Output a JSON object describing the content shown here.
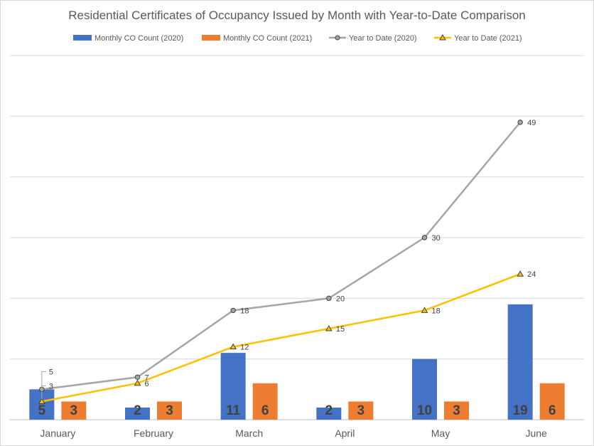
{
  "chart_data": {
    "type": "bar",
    "title": "Residential Certificates of Occupancy Issued by Month with Year-to-Date Comparison",
    "categories": [
      "January",
      "February",
      "March",
      "April",
      "May",
      "June"
    ],
    "series": [
      {
        "name": "Monthly CO Count (2020)",
        "kind": "bar",
        "color": "#4472C4",
        "values": [
          5,
          2,
          11,
          2,
          10,
          19
        ]
      },
      {
        "name": "Monthly CO Count (2021)",
        "kind": "bar",
        "color": "#ED7D31",
        "values": [
          3,
          3,
          6,
          3,
          3,
          6
        ]
      },
      {
        "name": "Year to Date (2020)",
        "kind": "line",
        "marker": "circle",
        "color": "#A5A5A5",
        "values": [
          5,
          7,
          18,
          20,
          30,
          49
        ]
      },
      {
        "name": "Year to Date (2021)",
        "kind": "line",
        "marker": "triangle",
        "color": "#FFC000",
        "values": [
          3,
          6,
          12,
          15,
          18,
          24
        ]
      }
    ],
    "ylim": [
      0,
      60
    ],
    "grid": true,
    "y_tick_labels_visible": false,
    "legend_position": "top"
  }
}
